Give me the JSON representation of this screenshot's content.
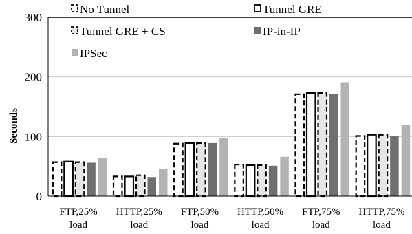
{
  "chart_data": {
    "type": "bar",
    "title": "",
    "xlabel": "",
    "ylabel": "Seconds",
    "ylim": [
      0,
      300
    ],
    "yticks": [
      "0",
      "100",
      "200",
      "300"
    ],
    "grid": true,
    "legend_position": "top",
    "categories": [
      [
        "FTP,25%",
        "load"
      ],
      [
        "HTTP,25%",
        "load"
      ],
      [
        "FTP,50%",
        "load"
      ],
      [
        "HTTP,50%",
        "load"
      ],
      [
        "FTP,75%",
        "load"
      ],
      [
        "HTTP,75%",
        "load"
      ]
    ],
    "series": [
      {
        "name": "No Tunnel",
        "style": "dashed-outline",
        "color": "#000000",
        "values": [
          57,
          33,
          88,
          53,
          171,
          101
        ]
      },
      {
        "name": "Tunnel GRE",
        "style": "solid-outline",
        "color": "#000000",
        "values": [
          58,
          33,
          89,
          52,
          173,
          103
        ]
      },
      {
        "name": "Tunnel GRE + CS",
        "style": "dashed-outline-gray",
        "color": "#e6e6e6",
        "values": [
          57,
          35,
          89,
          52,
          173,
          103
        ]
      },
      {
        "name": "IP-in-IP",
        "style": "solid-fill",
        "color": "#6f6f6f",
        "values": [
          56,
          32,
          89,
          51,
          172,
          101
        ]
      },
      {
        "name": "IPSec",
        "style": "solid-fill",
        "color": "#b3b3b3",
        "values": [
          64,
          45,
          98,
          66,
          191,
          120
        ]
      }
    ]
  }
}
